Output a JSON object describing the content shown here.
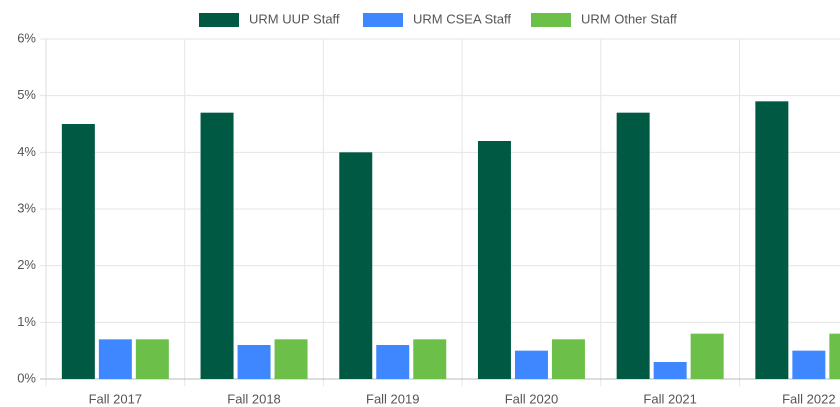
{
  "chart_data": {
    "type": "bar",
    "categories": [
      "Fall 2017",
      "Fall 2018",
      "Fall 2019",
      "Fall 2020",
      "Fall 2021",
      "Fall 2022"
    ],
    "series": [
      {
        "name": "URM UUP Staff",
        "color": "#005a43",
        "values": [
          4.5,
          4.7,
          4.0,
          4.2,
          4.7,
          4.9
        ]
      },
      {
        "name": "URM CSEA Staff",
        "color": "#3f87ff",
        "values": [
          0.7,
          0.6,
          0.6,
          0.5,
          0.3,
          0.5
        ]
      },
      {
        "name": "URM Other Staff",
        "color": "#6cc04a",
        "values": [
          0.7,
          0.7,
          0.7,
          0.7,
          0.8,
          0.8
        ]
      }
    ],
    "ylim": [
      0,
      6
    ],
    "yticks": [
      {
        "value": 0,
        "label": "0%"
      },
      {
        "value": 1,
        "label": "1%"
      },
      {
        "value": 2,
        "label": "2%"
      },
      {
        "value": 3,
        "label": "3%"
      },
      {
        "value": 4,
        "label": "4%"
      },
      {
        "value": 5,
        "label": "5%"
      },
      {
        "value": 6,
        "label": "6%"
      }
    ],
    "grid": true,
    "legend": "top"
  }
}
